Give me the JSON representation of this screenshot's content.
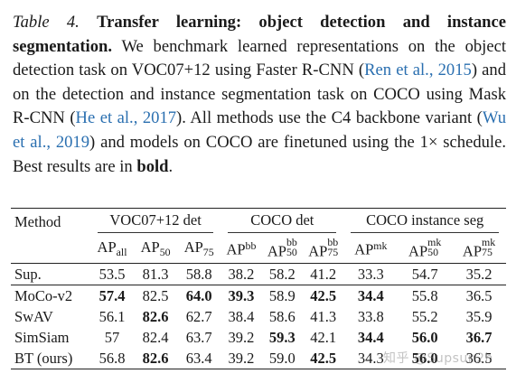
{
  "caption": {
    "table_number": "Table 4.",
    "title": "Transfer learning: object detection and instance segmentation.",
    "text_1": " We benchmark learned representations on the object detection task on VOC07+12 using Faster R-CNN (",
    "cite_1": "Ren et al., 2015",
    "text_2": ") and on the detection and instance segmentation task on COCO using Mask R-CNN (",
    "cite_2": "He et al., 2017",
    "text_3": "). All methods use the C4 backbone variant (",
    "cite_3": "Wu et al., 2019",
    "text_4": ") and models on COCO are finetuned using the 1× schedule. Best results are in ",
    "bold_word": "bold",
    "text_5": "."
  },
  "table": {
    "method_header": "Method",
    "groups": [
      "VOC07+12 det",
      "COCO det",
      "COCO instance seg"
    ],
    "columns": [
      {
        "base": "AP",
        "sub": "all",
        "sup": ""
      },
      {
        "base": "AP",
        "sub": "50",
        "sup": ""
      },
      {
        "base": "AP",
        "sub": "75",
        "sup": ""
      },
      {
        "base": "AP",
        "sub": "",
        "sup": "bb"
      },
      {
        "base": "AP",
        "sub": "50",
        "sup": "bb"
      },
      {
        "base": "AP",
        "sub": "75",
        "sup": "bb"
      },
      {
        "base": "AP",
        "sub": "",
        "sup": "mk"
      },
      {
        "base": "AP",
        "sub": "50",
        "sup": "mk"
      },
      {
        "base": "AP",
        "sub": "75",
        "sup": "mk"
      }
    ],
    "sup_row": {
      "method": "Sup.",
      "values": [
        "53.5",
        "81.3",
        "58.8",
        "38.2",
        "58.2",
        "41.2",
        "33.3",
        "54.7",
        "35.2"
      ]
    },
    "rows": [
      {
        "method": "MoCo-v2",
        "values": [
          "57.4",
          "82.5",
          "64.0",
          "39.3",
          "58.9",
          "42.5",
          "34.4",
          "55.8",
          "36.5"
        ],
        "bold": [
          0,
          2,
          3,
          5,
          6
        ]
      },
      {
        "method": "SwAV",
        "values": [
          "56.1",
          "82.6",
          "62.7",
          "38.4",
          "58.6",
          "41.3",
          "33.8",
          "55.2",
          "35.9"
        ],
        "bold": [
          1
        ]
      },
      {
        "method": "SimSiam",
        "values": [
          "57",
          "82.4",
          "63.7",
          "39.2",
          "59.3",
          "42.1",
          "34.4",
          "56.0",
          "36.7"
        ],
        "bold": [
          4,
          6,
          7,
          8
        ]
      },
      {
        "method": "BT (ours)",
        "values": [
          "56.8",
          "82.6",
          "63.4",
          "39.2",
          "59.0",
          "42.5",
          "34.3",
          "56.0",
          "36.5"
        ],
        "bold": [
          1,
          5,
          7
        ]
      }
    ]
  },
  "watermark": "知乎 @Supsun2h"
}
